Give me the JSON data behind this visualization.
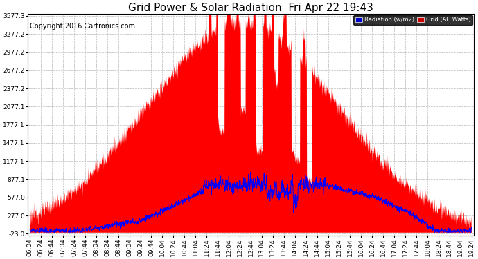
{
  "title": "Grid Power & Solar Radiation  Fri Apr 22 19:43",
  "copyright": "Copyright 2016 Cartronics.com",
  "legend_labels": [
    "Radiation (w/m2)",
    "Grid (AC Watts)"
  ],
  "background_color": "#ffffff",
  "plot_bg_color": "#ffffff",
  "grid_color": "#b0b0b0",
  "y_ticks": [
    -23.0,
    277.0,
    577.0,
    877.1,
    1177.1,
    1477.1,
    1777.1,
    2077.1,
    2377.2,
    2677.2,
    2977.2,
    3277.2,
    3577.3
  ],
  "y_min": -23.0,
  "y_max": 3577.3,
  "x_tick_labels": [
    "06:04",
    "06:24",
    "06:44",
    "07:04",
    "07:24",
    "07:44",
    "08:04",
    "08:24",
    "08:44",
    "09:04",
    "09:24",
    "09:44",
    "10:04",
    "10:24",
    "10:44",
    "11:04",
    "11:24",
    "11:44",
    "12:04",
    "12:24",
    "12:44",
    "13:04",
    "13:24",
    "13:44",
    "14:04",
    "14:24",
    "14:44",
    "15:04",
    "15:24",
    "15:44",
    "16:04",
    "16:24",
    "16:44",
    "17:04",
    "17:24",
    "17:44",
    "18:04",
    "18:24",
    "18:44",
    "19:04",
    "19:24"
  ],
  "solar_color": "#ff0000",
  "grid_line_color": "#0000ff",
  "title_fontsize": 11,
  "axis_fontsize": 6.5,
  "copyright_fontsize": 7
}
